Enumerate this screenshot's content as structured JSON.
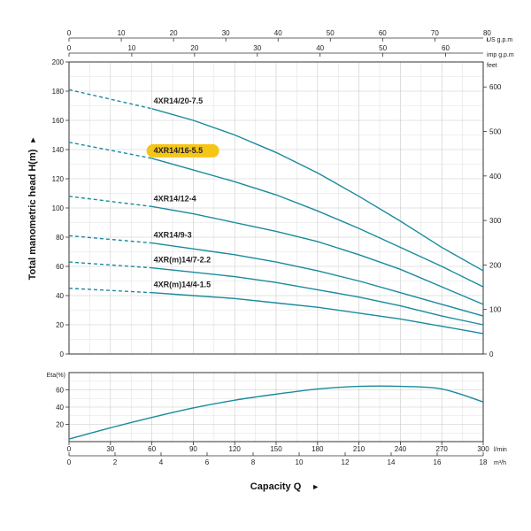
{
  "chart_data": [
    {
      "type": "line",
      "name": "head",
      "ylabel": "Total manometric head H(m)",
      "ylabel_marker": "►",
      "ylim": [
        0,
        200
      ],
      "yticks": [
        0,
        20,
        40,
        60,
        80,
        100,
        120,
        140,
        160,
        180,
        200
      ],
      "right_axis": {
        "unit": "feet",
        "ticks": [
          0,
          100,
          200,
          300,
          400,
          500,
          600
        ],
        "factor": 3.28084
      },
      "top_axis_us": {
        "unit": "US g.p.m",
        "ticks": [
          0,
          10,
          20,
          30,
          40,
          50,
          60,
          70,
          80
        ],
        "factor": 0.264172
      },
      "top_axis_imp": {
        "unit": "imp g.p.m",
        "ticks": [
          0,
          10,
          20,
          30,
          40,
          50,
          60
        ],
        "factor": 0.219969
      },
      "xlim": [
        0,
        300
      ],
      "grid": true,
      "series": [
        {
          "name": "4XR14/20-7.5",
          "color": "#1a8a9e",
          "highlight": false,
          "dashed": {
            "x": [
              0,
              60
            ],
            "y": [
              181,
              168
            ]
          },
          "solid": {
            "x": [
              60,
              90,
              120,
              150,
              180,
              210,
              240,
              270,
              300
            ],
            "y": [
              168,
              160,
              150,
              138,
              124,
              108,
              91,
              73,
              57
            ]
          }
        },
        {
          "name": "4XR14/16-5.5",
          "color": "#1a8a9e",
          "highlight": true,
          "highlight_color": "#f5c518",
          "dashed": {
            "x": [
              0,
              60
            ],
            "y": [
              145,
              134
            ]
          },
          "solid": {
            "x": [
              60,
              90,
              120,
              150,
              180,
              210,
              240,
              270,
              300
            ],
            "y": [
              134,
              126,
              118,
              109,
              98,
              86,
              73,
              60,
              46
            ]
          }
        },
        {
          "name": "4XR14/12-4",
          "color": "#1a8a9e",
          "highlight": false,
          "dashed": {
            "x": [
              0,
              60
            ],
            "y": [
              108,
              101
            ]
          },
          "solid": {
            "x": [
              60,
              90,
              120,
              150,
              180,
              210,
              240,
              270,
              300
            ],
            "y": [
              101,
              96,
              90,
              84,
              77,
              68,
              58,
              46,
              34
            ]
          }
        },
        {
          "name": "4XR14/9-3",
          "color": "#1a8a9e",
          "highlight": false,
          "dashed": {
            "x": [
              0,
              60
            ],
            "y": [
              81,
              76
            ]
          },
          "solid": {
            "x": [
              60,
              90,
              120,
              150,
              180,
              210,
              240,
              270,
              300
            ],
            "y": [
              76,
              72,
              68,
              63,
              57,
              50,
              42,
              34,
              26
            ]
          }
        },
        {
          "name": "4XR(m)14/7-2.2",
          "color": "#1a8a9e",
          "highlight": false,
          "dashed": {
            "x": [
              0,
              60
            ],
            "y": [
              63,
              59
            ]
          },
          "solid": {
            "x": [
              60,
              90,
              120,
              150,
              180,
              210,
              240,
              270,
              300
            ],
            "y": [
              59,
              56,
              53,
              49,
              44,
              39,
              33,
              26,
              20
            ]
          }
        },
        {
          "name": "4XR(m)14/4-1.5",
          "color": "#1a8a9e",
          "highlight": false,
          "dashed": {
            "x": [
              0,
              60
            ],
            "y": [
              45,
              42
            ]
          },
          "solid": {
            "x": [
              60,
              90,
              120,
              150,
              180,
              210,
              240,
              270,
              300
            ],
            "y": [
              42,
              40,
              38,
              35,
              32,
              28,
              24,
              19,
              14
            ]
          }
        }
      ]
    },
    {
      "type": "line",
      "name": "efficiency",
      "ylabel": "Eta(%)",
      "ylim": [
        0,
        80
      ],
      "yticks": [
        20,
        40,
        60
      ],
      "xlabel": "Capacity Q",
      "xlabel_marker": "►",
      "xlim": [
        0,
        300
      ],
      "x_lpm": {
        "unit": "l/min",
        "ticks": [
          0,
          30,
          60,
          90,
          120,
          150,
          180,
          210,
          240,
          270,
          300
        ]
      },
      "x_m3h": {
        "unit": "m³/h",
        "ticks": [
          0,
          2,
          4,
          6,
          8,
          10,
          12,
          14,
          16,
          18
        ],
        "factor": 0.06
      },
      "grid": true,
      "series": [
        {
          "color": "#1a8a9e",
          "x": [
            0,
            30,
            60,
            90,
            120,
            150,
            180,
            210,
            240,
            270,
            300
          ],
          "y": [
            3,
            16,
            28,
            39,
            48,
            55,
            61,
            64,
            64,
            61,
            46
          ]
        }
      ]
    }
  ]
}
